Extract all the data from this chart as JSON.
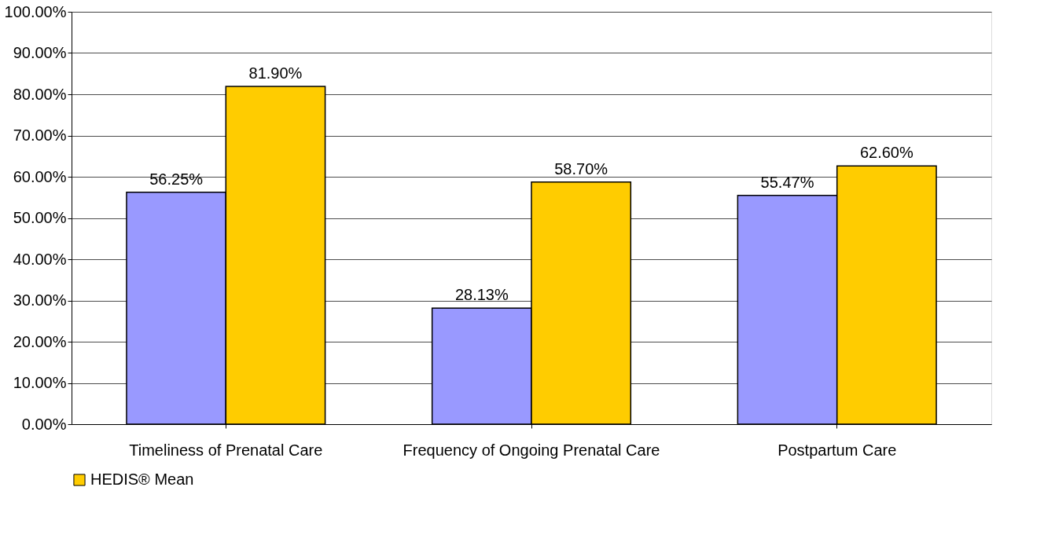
{
  "chart_data": {
    "type": "bar",
    "categories": [
      "Timeliness of Prenatal Care",
      "Frequency of Ongoing Prenatal Care",
      "Postpartum Care"
    ],
    "series": [
      {
        "color": "#9999ff",
        "values": [
          56.25,
          28.13,
          55.47
        ],
        "value_labels": [
          "56.25%",
          "28.13%",
          "55.47%"
        ]
      },
      {
        "name": "HEDIS® Mean",
        "color": "#ffcc00",
        "values": [
          81.9,
          58.7,
          62.6
        ],
        "value_labels": [
          "81.90%",
          "58.70%",
          "62.60%"
        ]
      }
    ],
    "ylim": [
      0,
      100
    ],
    "yticks": [
      {
        "value": 0,
        "label": "0.00%"
      },
      {
        "value": 10,
        "label": "10.00%"
      },
      {
        "value": 20,
        "label": "20.00%"
      },
      {
        "value": 30,
        "label": "30.00%"
      },
      {
        "value": 40,
        "label": "40.00%"
      },
      {
        "value": 50,
        "label": "50.00%"
      },
      {
        "value": 60,
        "label": "60.00%"
      },
      {
        "value": 70,
        "label": "70.00%"
      },
      {
        "value": 80,
        "label": "80.00%"
      },
      {
        "value": 90,
        "label": "90.00%"
      },
      {
        "value": 100,
        "label": "100.00%"
      }
    ],
    "grid": "y",
    "legend": "bottom"
  }
}
